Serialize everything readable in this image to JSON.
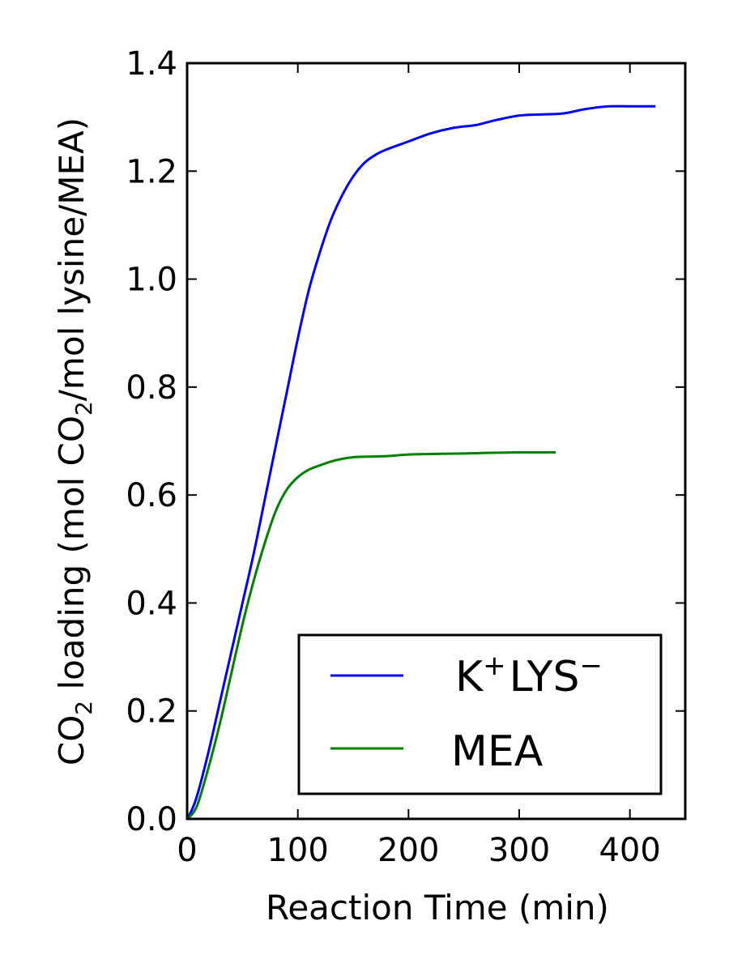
{
  "chart_data": {
    "type": "line",
    "title": "",
    "xlabel": "Reaction Time (min)",
    "ylabel": {
      "prefix": "CO",
      "sub1": "2",
      "middle": " loading (mol CO",
      "sub2": "2",
      "suffix": "/mol lysine/MEA)"
    },
    "xlim": [
      0,
      450
    ],
    "ylim": [
      0,
      1.4
    ],
    "xticks": [
      0,
      100,
      200,
      300,
      400
    ],
    "xtick_labels": [
      "0",
      "100",
      "200",
      "300",
      "400"
    ],
    "yticks": [
      0,
      0.2,
      0.4,
      0.6,
      0.8,
      1.0,
      1.2,
      1.4
    ],
    "ytick_labels": [
      "0.0",
      "0.2",
      "0.4",
      "0.6",
      "0.8",
      "1.0",
      "1.2",
      "1.4"
    ],
    "grid": false,
    "legend_position": "lower-right",
    "series": [
      {
        "name": "K⁺LYS⁻",
        "legend": {
          "base1": "K",
          "sup1": "+",
          "base2": "LYS",
          "sup2": "−"
        },
        "color": "#0000ff",
        "x": [
          0,
          5,
          10,
          20,
          30,
          40,
          50,
          60,
          70,
          80,
          90,
          100,
          110,
          120,
          130,
          140,
          150,
          160,
          170,
          180,
          200,
          220,
          240,
          260,
          270,
          280,
          300,
          320,
          340,
          360,
          380,
          400,
          423
        ],
        "y": [
          0,
          0.02,
          0.05,
          0.13,
          0.22,
          0.31,
          0.4,
          0.49,
          0.59,
          0.69,
          0.79,
          0.89,
          0.98,
          1.05,
          1.11,
          1.155,
          1.19,
          1.215,
          1.23,
          1.24,
          1.255,
          1.27,
          1.28,
          1.285,
          1.29,
          1.295,
          1.303,
          1.305,
          1.307,
          1.315,
          1.32,
          1.32,
          1.32
        ]
      },
      {
        "name": "MEA",
        "legend": {
          "base1": "MEA",
          "sup1": "",
          "base2": "",
          "sup2": ""
        },
        "color": "#008000",
        "x": [
          0,
          5,
          10,
          20,
          30,
          40,
          50,
          60,
          70,
          80,
          90,
          100,
          110,
          120,
          130,
          140,
          150,
          160,
          180,
          200,
          220,
          250,
          270,
          300,
          333
        ],
        "y": [
          0,
          0.01,
          0.03,
          0.1,
          0.18,
          0.27,
          0.36,
          0.44,
          0.51,
          0.57,
          0.61,
          0.633,
          0.647,
          0.655,
          0.662,
          0.667,
          0.67,
          0.671,
          0.672,
          0.675,
          0.676,
          0.677,
          0.678,
          0.679,
          0.679
        ]
      }
    ]
  }
}
